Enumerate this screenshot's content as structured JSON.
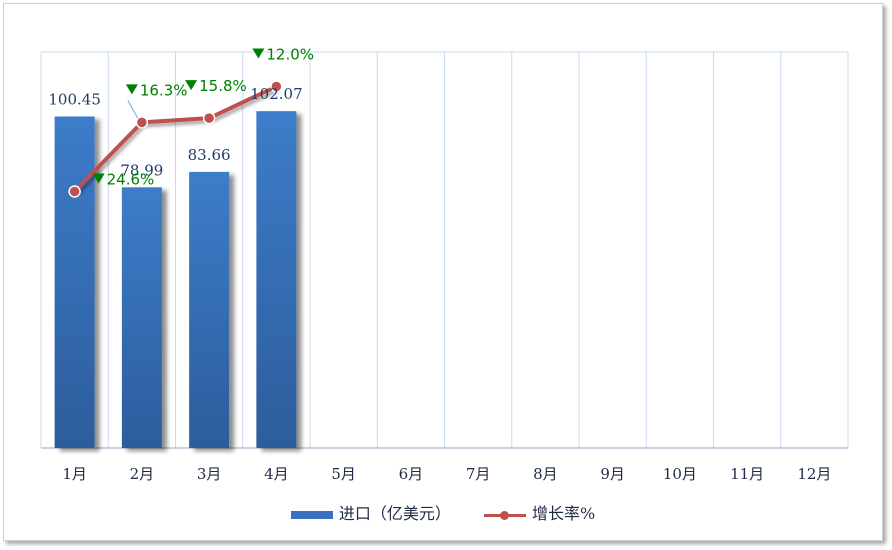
{
  "chart_data": {
    "type": "bar",
    "categories": [
      "1月",
      "2月",
      "3月",
      "4月",
      "5月",
      "6月",
      "7月",
      "8月",
      "9月",
      "10月",
      "11月",
      "12月"
    ],
    "series": [
      {
        "name": "进口（亿美元）",
        "type": "bar",
        "values": [
          100.45,
          78.99,
          83.66,
          102.07,
          null,
          null,
          null,
          null,
          null,
          null,
          null,
          null
        ],
        "value_labels": [
          "100.45",
          "78.99",
          "83.66",
          "102.07"
        ],
        "color": "#3a72bf"
      },
      {
        "name": "增长率%",
        "type": "line",
        "values": [
          -24.6,
          -16.3,
          -15.8,
          -12.0,
          null,
          null,
          null,
          null,
          null,
          null,
          null,
          null
        ],
        "value_labels": [
          "24.6%",
          "16.3%",
          "15.8%",
          "12.0%"
        ],
        "direction": "down",
        "color": "#c0504d"
      }
    ],
    "grid": true,
    "legend_position": "bottom",
    "label_color": "#008000"
  },
  "legend": {
    "bar_label": "进口（亿美元）",
    "line_label": "增长率%"
  }
}
